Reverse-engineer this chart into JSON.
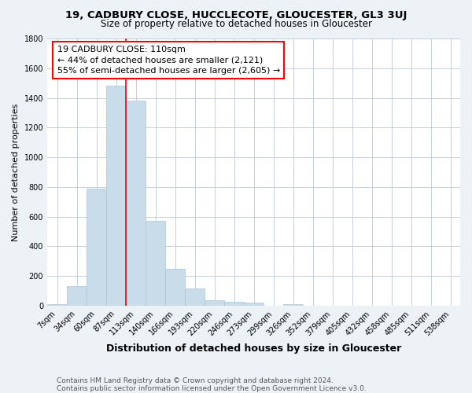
{
  "title1": "19, CADBURY CLOSE, HUCCLECOTE, GLOUCESTER, GL3 3UJ",
  "title2": "Size of property relative to detached houses in Gloucester",
  "xlabel": "Distribution of detached houses by size in Gloucester",
  "ylabel": "Number of detached properties",
  "footnote1": "Contains HM Land Registry data © Crown copyright and database right 2024.",
  "footnote2": "Contains public sector information licensed under the Open Government Licence v3.0.",
  "categories": [
    "7sqm",
    "34sqm",
    "60sqm",
    "87sqm",
    "113sqm",
    "140sqm",
    "166sqm",
    "193sqm",
    "220sqm",
    "246sqm",
    "273sqm",
    "299sqm",
    "326sqm",
    "352sqm",
    "379sqm",
    "405sqm",
    "432sqm",
    "458sqm",
    "485sqm",
    "511sqm",
    "538sqm"
  ],
  "values": [
    10,
    130,
    790,
    1480,
    1380,
    570,
    250,
    115,
    35,
    25,
    20,
    0,
    10,
    0,
    0,
    0,
    0,
    0,
    0,
    0,
    0
  ],
  "bar_color": "#c8dcea",
  "bar_edge_color": "#adc4d8",
  "red_line_x": 4,
  "annotation_text_line1": "19 CADBURY CLOSE: 110sqm",
  "annotation_text_line2": "← 44% of detached houses are smaller (2,121)",
  "annotation_text_line3": "55% of semi-detached houses are larger (2,605) →",
  "annotation_box_facecolor": "white",
  "annotation_box_edgecolor": "red",
  "red_line_color": "red",
  "ylim": [
    0,
    1800
  ],
  "yticks": [
    0,
    200,
    400,
    600,
    800,
    1000,
    1200,
    1400,
    1600,
    1800
  ],
  "bg_color": "#edf2f7",
  "plot_bg_color": "white",
  "grid_color": "#c5d0dc",
  "title1_fontsize": 9.5,
  "title2_fontsize": 8.5,
  "xlabel_fontsize": 9,
  "ylabel_fontsize": 8,
  "tick_fontsize": 7,
  "annotation_fontsize": 8,
  "footnote_fontsize": 6.5
}
